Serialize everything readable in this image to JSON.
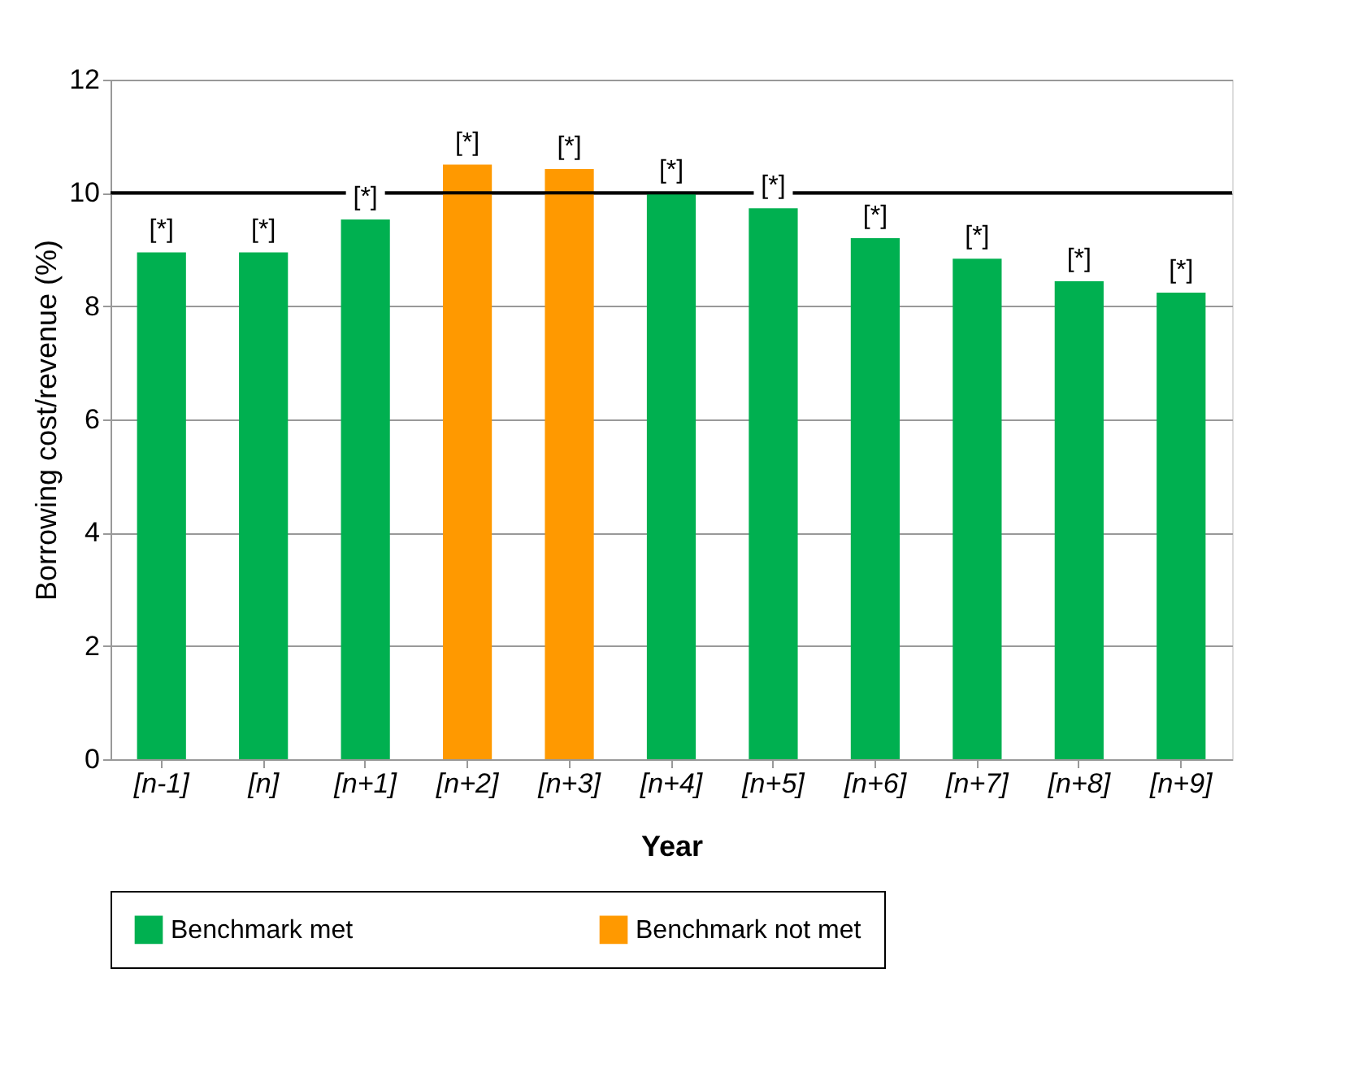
{
  "chart_data": {
    "type": "bar",
    "xlabel": "Year",
    "ylabel": "Borrowing cost/revenue (%)",
    "categories": [
      "[n-1]",
      "[n]",
      "[n+1]",
      "[n+2]",
      "[n+3]",
      "[n+4]",
      "[n+5]",
      "[n+6]",
      "[n+7]",
      "[n+8]",
      "[n+9]"
    ],
    "series": [
      {
        "name": "Benchmark met",
        "color": "#00b050",
        "values": [
          8.95,
          8.95,
          9.53,
          null,
          null,
          10.0,
          9.73,
          9.2,
          8.84,
          8.44,
          8.24
        ],
        "value_labels": [
          "[*]",
          "[*]",
          "[*]",
          null,
          null,
          "[*]",
          "[*]",
          "[*]",
          "[*]",
          "[*]",
          "[*]"
        ]
      },
      {
        "name": "Benchmark not met",
        "color": "#ff9900",
        "values": [
          null,
          null,
          null,
          10.5,
          10.42,
          null,
          null,
          null,
          null,
          null,
          null
        ],
        "value_labels": [
          null,
          null,
          null,
          "[*]",
          "[*]",
          null,
          null,
          null,
          null,
          null,
          null
        ]
      }
    ],
    "ylim": [
      0,
      12
    ],
    "yticks": [
      0,
      2,
      4,
      6,
      8,
      10,
      12
    ],
    "grid": "y",
    "legend": "bottom",
    "ref_lines": [
      {
        "axis": "y",
        "value": 10,
        "color": "#000000",
        "line_style": "solid"
      }
    ]
  }
}
